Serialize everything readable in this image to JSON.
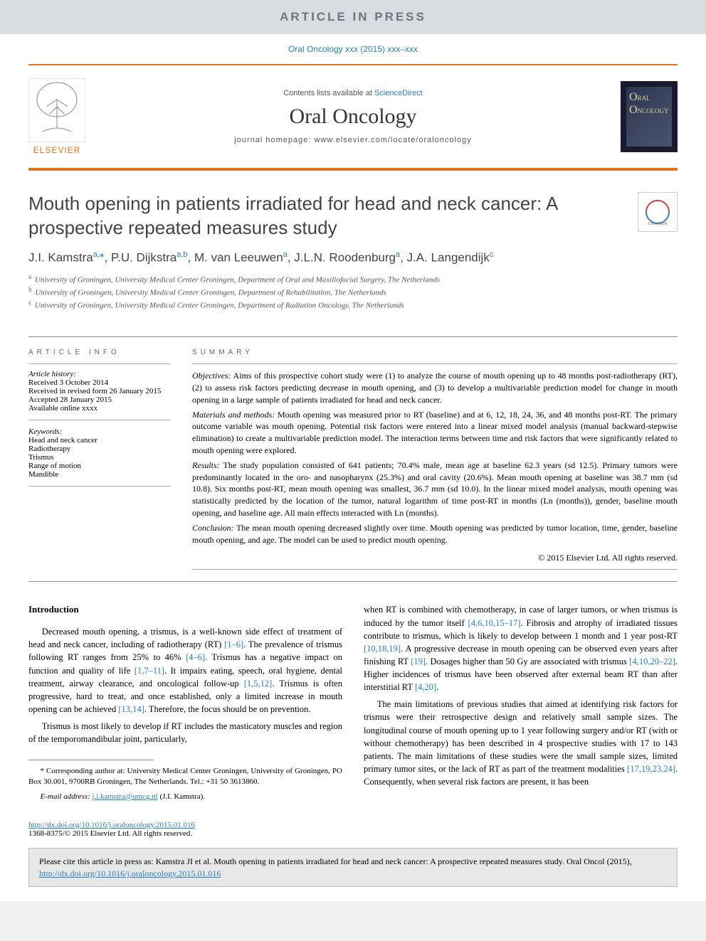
{
  "banner": {
    "text": "ARTICLE IN PRESS"
  },
  "citation_line": "Oral Oncology xxx (2015) xxx–xxx",
  "masthead": {
    "elsevier_label": "ELSEVIER",
    "contents_prefix": "Contents lists available at ",
    "contents_link": "ScienceDirect",
    "journal_name": "Oral Oncology",
    "homepage_prefix": "journal homepage: ",
    "homepage_url": "www.elsevier.com/locate/oraloncology",
    "journal_logo_text": "ORAL ONCOLOGY"
  },
  "article": {
    "title": "Mouth opening in patients irradiated for head and neck cancer: A prospective repeated measures study",
    "authors_html": "J.I. Kamstra<sup>a,</sup><span class=\"star\">*</span>, P.U. Dijkstra<sup>a,b</sup>, M. van Leeuwen<sup>a</sup>, J.L.N. Roodenburg<sup>a</sup>, J.A. Langendijk<sup>c</sup>",
    "affiliations": [
      {
        "sup": "a",
        "text": "University of Groningen, University Medical Center Groningen, Department of Oral and Maxillofacial Surgery, The Netherlands"
      },
      {
        "sup": "b",
        "text": "University of Groningen, University Medical Center Groningen, Department of Rehabilitation, The Netherlands"
      },
      {
        "sup": "c",
        "text": "University of Groningen, University Medical Center Groningen, Department of Radiation Oncology, The Netherlands"
      }
    ]
  },
  "article_info": {
    "heading": "ARTICLE INFO",
    "history_label": "Article history:",
    "history": [
      "Received 3 October 2014",
      "Received in revised form 26 January 2015",
      "Accepted 28 January 2015",
      "Available online xxxx"
    ],
    "keywords_label": "Keywords:",
    "keywords": [
      "Head and neck cancer",
      "Radiotherapy",
      "Trismus",
      "Range of motion",
      "Mandible"
    ]
  },
  "summary": {
    "heading": "SUMMARY",
    "objectives_label": "Objectives:",
    "objectives": " Aims of this prospective cohort study were (1) to analyze the course of mouth opening up to 48 months post-radiotherapy (RT), (2) to assess risk factors predicting decrease in mouth opening, and (3) to develop a multivariable prediction model for change in mouth opening in a large sample of patients irradiated for head and neck cancer.",
    "methods_label": "Materials and methods:",
    "methods": " Mouth opening was measured prior to RT (baseline) and at 6, 12, 18, 24, 36, and 48 months post-RT. The primary outcome variable was mouth opening. Potential risk factors were entered into a linear mixed model analysis (manual backward-stepwise elimination) to create a multivariable prediction model. The interaction terms between time and risk factors that were significantly related to mouth opening were explored.",
    "results_label": "Results:",
    "results": " The study population consisted of 641 patients; 70.4% male, mean age at baseline 62.3 years (sd 12.5). Primary tumors were predominantly located in the oro- and nasopharynx (25.3%) and oral cavity (20.6%). Mean mouth opening at baseline was 38.7 mm (sd 10.8). Six months post-RT, mean mouth opening was smallest, 36.7 mm (sd 10.0). In the linear mixed model analysis, mouth opening was statistically predicted by the location of the tumor, natural logarithm of time post-RT in months (Ln (months)), gender, baseline mouth opening, and baseline age. All main effects interacted with Ln (months).",
    "conclusion_label": "Conclusion:",
    "conclusion": " The mean mouth opening decreased slightly over time. Mouth opening was predicted by tumor location, time, gender, baseline mouth opening, and age. The model can be used to predict mouth opening.",
    "copyright": "© 2015 Elsevier Ltd. All rights reserved."
  },
  "body": {
    "intro_heading": "Introduction",
    "left_p1_a": "Decreased mouth opening, a trismus, is a well-known side effect of treatment of head and neck cancer, including of radiotherapy (RT) ",
    "left_p1_ref1": "[1–6]",
    "left_p1_b": ". The prevalence of trismus following RT ranges from 25% to 46% ",
    "left_p1_ref2": "[4–6]",
    "left_p1_c": ". Trismus has a negative impact on function and quality of life ",
    "left_p1_ref3": "[1,7–11]",
    "left_p1_d": ". It impairs eating, speech, oral hygiene, dental treatment, airway clearance, and oncological follow-up ",
    "left_p1_ref4": "[1,5,12]",
    "left_p1_e": ". Trismus is often progressive, hard to treat, and once established, only a limited increase in mouth opening can be achieved ",
    "left_p1_ref5": "[13,14]",
    "left_p1_f": ". Therefore, the focus should be on prevention.",
    "left_p2": "Trismus is most likely to develop if RT includes the masticatory muscles and region of the temporomandibular joint, particularly,",
    "corr_label": "* Corresponding author at: University Medical Center Groningen, University of Groningen, PO Box 30.001, 9700RB Groningen, The Netherlands. Tel.: +31 50 3613860.",
    "email_label": "E-mail address: ",
    "email": "j.i.kamstra@umcg.nl",
    "email_owner": " (J.I. Kamstra).",
    "right_p1_a": "when RT is combined with chemotherapy, in case of larger tumors, or when trismus is induced by the tumor itself ",
    "right_p1_ref1": "[4,6,10,15–17]",
    "right_p1_b": ". Fibrosis and atrophy of irradiated tissues contribute to trismus, which is likely to develop between 1 month and 1 year post-RT ",
    "right_p1_ref2": "[10,18,19]",
    "right_p1_c": ". A progressive decrease in mouth opening can be observed even years after finishing RT ",
    "right_p1_ref3": "[19]",
    "right_p1_d": ". Dosages higher than 50 Gy are associated with trismus ",
    "right_p1_ref4": "[4,10,20–22]",
    "right_p1_e": ". Higher incidences of trismus have been observed after external beam RT than after interstitial RT ",
    "right_p1_ref5": "[4,20]",
    "right_p1_f": ".",
    "right_p2_a": "The main limitations of previous studies that aimed at identifying risk factors for trismus were their retrospective design and relatively small sample sizes. The longitudinal course of mouth opening up to 1 year following surgery and/or RT (with or without chemotherapy) has been described in 4 prospective studies with 17 to 143 patients. The main limitations of these studies were the small sample sizes, limited primary tumor sites, or the lack of RT as part of the treatment modalities ",
    "right_p2_ref1": "[17,19,23,24]",
    "right_p2_b": ". Consequently, when several risk factors are present, it has been"
  },
  "doi": {
    "url": "http://dx.doi.org/10.1016/j.oraloncology.2015.01.016",
    "issn_line": "1368-8375/© 2015 Elsevier Ltd. All rights reserved."
  },
  "citebox": {
    "text_a": "Please cite this article in press as: Kamstra JI et al. Mouth opening in patients irradiated for head and neck cancer: A prospective repeated measures study. Oral Oncol (2015), ",
    "link": "http://dx.doi.org/10.1016/j.oraloncology.2015.01.016"
  },
  "colors": {
    "accent_orange": "#e37222",
    "link_blue": "#2a7fb8",
    "banner_bg": "#d8dde2",
    "banner_fg": "#6b7580",
    "journal_cover_bg": "#1a1a2e"
  },
  "crossmark_label": "CrossMark"
}
